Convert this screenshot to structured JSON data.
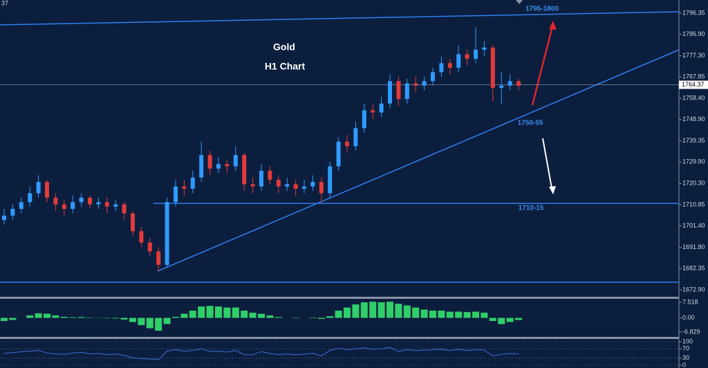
{
  "chart_data": [
    {
      "type": "candlestick",
      "corner_text": "37",
      "annotations": [
        "Gold",
        "H1 Chart",
        "1795-1800",
        "1750-55",
        "1710-15"
      ],
      "last_price": 1764.37,
      "up_color": "#2f9bff",
      "down_color": "#e23b3b",
      "ylim": [
        1670.1,
        1802.2
      ],
      "yticks": [
        1796.35,
        {
          "value": 1786.9,
          "label": "1786.90"
        },
        {
          "value": 1777.3,
          "label": "1777.30"
        },
        1767.85,
        {
          "value": 1758.4,
          "label": "1758.40"
        },
        {
          "value": 1748.9,
          "label": "1748.90"
        },
        1739.35,
        {
          "value": 1729.9,
          "label": "1729.90"
        },
        {
          "value": 1720.3,
          "label": "1720.30"
        },
        1710.85,
        {
          "value": 1701.4,
          "label": "1701.40"
        },
        {
          "value": 1691.8,
          "label": "1691.80"
        },
        1682.35,
        {
          "value": 1672.9,
          "label": "1672.90"
        }
      ],
      "ohlc": [
        [
          1704,
          1709,
          1702,
          1706
        ],
        [
          1706,
          1711,
          1704,
          1709
        ],
        [
          1709,
          1714,
          1707,
          1712
        ],
        [
          1712,
          1719,
          1710,
          1716
        ],
        [
          1716,
          1724,
          1714,
          1721
        ],
        [
          1721,
          1722,
          1712,
          1714
        ],
        [
          1714,
          1716,
          1708,
          1711
        ],
        [
          1711,
          1713,
          1706,
          1709
        ],
        [
          1709,
          1715,
          1707,
          1712
        ],
        [
          1712,
          1716,
          1710,
          1714
        ],
        [
          1714,
          1715,
          1709,
          1711
        ],
        [
          1711,
          1714,
          1709,
          1712
        ],
        [
          1712,
          1714,
          1707,
          1710
        ],
        [
          1710,
          1713,
          1708,
          1711
        ],
        [
          1711,
          1712,
          1704,
          1707
        ],
        [
          1707,
          1708,
          1697,
          1699
        ],
        [
          1699,
          1701,
          1692,
          1694
        ],
        [
          1694,
          1696,
          1688,
          1690
        ],
        [
          1690,
          1692,
          1681,
          1684
        ],
        [
          1684,
          1714,
          1683,
          1712
        ],
        [
          1712,
          1722,
          1710,
          1719
        ],
        [
          1719,
          1722,
          1715,
          1718
        ],
        [
          1718,
          1726,
          1716,
          1723
        ],
        [
          1723,
          1739,
          1721,
          1733
        ],
        [
          1733,
          1735,
          1724,
          1727
        ],
        [
          1727,
          1732,
          1725,
          1729
        ],
        [
          1729,
          1731,
          1725,
          1728
        ],
        [
          1728,
          1737,
          1726,
          1733
        ],
        [
          1733,
          1734,
          1717,
          1720
        ],
        [
          1720,
          1723,
          1716,
          1719
        ],
        [
          1719,
          1729,
          1717,
          1726
        ],
        [
          1726,
          1728,
          1720,
          1722
        ],
        [
          1722,
          1724,
          1716,
          1719
        ],
        [
          1719,
          1723,
          1717,
          1720
        ],
        [
          1720,
          1722,
          1715,
          1718
        ],
        [
          1718,
          1722,
          1716,
          1719
        ],
        [
          1719,
          1724,
          1717,
          1721
        ],
        [
          1721,
          1723,
          1712,
          1716
        ],
        [
          1716,
          1730,
          1714,
          1728
        ],
        [
          1728,
          1741,
          1726,
          1739
        ],
        [
          1739,
          1742,
          1734,
          1737
        ],
        [
          1737,
          1748,
          1735,
          1745
        ],
        [
          1745,
          1756,
          1743,
          1753
        ],
        [
          1753,
          1756,
          1749,
          1752
        ],
        [
          1752,
          1759,
          1750,
          1756
        ],
        [
          1756,
          1769,
          1754,
          1766
        ],
        [
          1766,
          1768,
          1755,
          1758
        ],
        [
          1758,
          1767,
          1756,
          1765
        ],
        [
          1765,
          1768,
          1761,
          1764
        ],
        [
          1764,
          1768,
          1762,
          1766
        ],
        [
          1766,
          1772,
          1764,
          1770
        ],
        [
          1770,
          1777,
          1768,
          1774
        ],
        [
          1774,
          1776,
          1769,
          1772
        ],
        [
          1772,
          1782,
          1770,
          1778
        ],
        [
          1778,
          1780,
          1773,
          1776
        ],
        [
          1776,
          1790,
          1774,
          1780
        ],
        [
          1780,
          1784,
          1777,
          1781
        ],
        [
          1781,
          1782,
          1757,
          1763
        ],
        [
          1763,
          1770,
          1756,
          1764
        ],
        [
          1764,
          1769,
          1762,
          1766
        ],
        [
          1766,
          1767,
          1762,
          1764
        ]
      ]
    },
    {
      "type": "bar",
      "color": "#2fcf6a",
      "ylim": [
        -9.16,
        9.19
      ],
      "yticks": [
        7.518,
        {
          "value": 0,
          "label": "0.00"
        },
        -6.829
      ],
      "values": [
        -1.5,
        -1,
        0,
        1.2,
        2.2,
        2,
        1.2,
        0.5,
        0.3,
        0.4,
        0.2,
        0.1,
        -0.2,
        -0.3,
        -0.8,
        -2,
        -3.5,
        -5,
        -6.2,
        -3,
        0.5,
        2,
        3.5,
        5.5,
        5.8,
        5.5,
        5,
        5,
        3.5,
        2.5,
        2,
        1.2,
        0.4,
        0,
        -0.2,
        0,
        0.2,
        -0.5,
        0.8,
        3.5,
        5,
        6.5,
        7.5,
        7.8,
        7.5,
        7.8,
        6.8,
        6,
        5,
        4,
        3.5,
        3.5,
        3,
        3,
        2.8,
        3,
        2.5,
        -1.5,
        -3,
        -2,
        -1
      ]
    },
    {
      "type": "line",
      "color": "#3a6fd8",
      "ylim": [
        -11.8,
        111.8
      ],
      "yticks": [
        100,
        70,
        30,
        0
      ],
      "values": [
        50,
        54,
        57,
        60,
        63,
        52,
        48,
        46,
        52,
        55,
        48,
        50,
        45,
        48,
        42,
        32,
        28,
        26,
        24,
        60,
        66,
        60,
        63,
        70,
        58,
        60,
        56,
        63,
        45,
        44,
        58,
        50,
        45,
        48,
        44,
        47,
        51,
        40,
        63,
        72,
        66,
        70,
        74,
        68,
        70,
        76,
        58,
        66,
        62,
        64,
        66,
        68,
        62,
        68,
        62,
        66,
        64,
        40,
        46,
        50,
        48
      ]
    }
  ]
}
